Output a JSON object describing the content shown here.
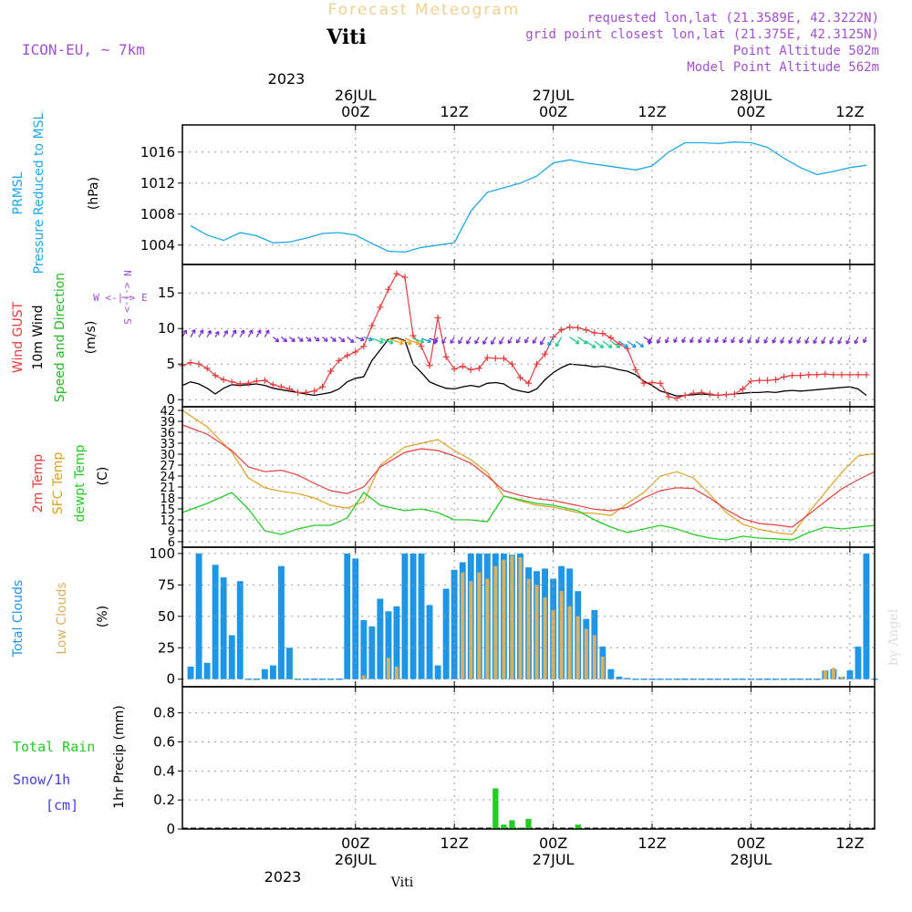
{
  "header": {
    "title": "Forecast Meteogram",
    "location": "Viti",
    "model": "ICON-EU, ~ 7km",
    "requested": "requested lon,lat (21.3589E, 42.3222N)",
    "gridpoint": "grid point closest lon,lat (21.375E, 42.3125N)",
    "point_altitude": "Point Altitude 502m",
    "model_altitude": "Model Point Altitude 562m",
    "footer_location": "Viti",
    "watermark": "by Angel"
  },
  "time_axis": {
    "hours_start": -21,
    "hours_end": 63,
    "top_year": "2023",
    "bottom_year": "2023",
    "ticks": [
      {
        "hour": 0,
        "label": "00Z",
        "date": "26JUL"
      },
      {
        "hour": 12,
        "label": "12Z",
        "date": ""
      },
      {
        "hour": 24,
        "label": "00Z",
        "date": "27JUL"
      },
      {
        "hour": 36,
        "label": "12Z",
        "date": ""
      },
      {
        "hour": 48,
        "label": "00Z",
        "date": "28JUL"
      },
      {
        "hour": 60,
        "label": "12Z",
        "date": ""
      }
    ]
  },
  "colors": {
    "pressure": "#1ea8e8",
    "gust": "#e83c3c",
    "wind": "#000000",
    "direction": "#22bb22",
    "t2m": "#e83c3c",
    "sfc": "#e0a020",
    "dewpt": "#22cc22",
    "total_clouds": "#1e96e8",
    "low_clouds": "#d8b060",
    "rain": "#22cc22",
    "snow": "#4040e0",
    "purple": "#a050d0"
  },
  "panels": {
    "pressure": {
      "label1": "PRMSL",
      "label2": "Pressure Reduced to MSL",
      "unit": "(hPa)",
      "ticks": [
        1004,
        1008,
        1012,
        1016
      ],
      "ylim": [
        1001.5,
        1019.5
      ]
    },
    "wind": {
      "label_gust": "Wind GUST",
      "label_wind": "10m Wind",
      "label_dir": "Speed and Direction",
      "unit": "(m/s)",
      "ticks": [
        0,
        5,
        10,
        15
      ],
      "ylim": [
        -1,
        19
      ],
      "compass_we": "W <-|-> E",
      "compass_ns": "N <-|-> S"
    },
    "temperature": {
      "label_t2m": "2m Temp",
      "label_sfc": "SFC Temp",
      "label_dew": "dewpt Temp",
      "unit": "(C)",
      "ticks": [
        6,
        9,
        12,
        15,
        18,
        21,
        24,
        27,
        30,
        33,
        36,
        39,
        42
      ],
      "ylim": [
        4.5,
        43
      ]
    },
    "clouds": {
      "label_total": "Total Clouds",
      "label_low": "Low Clouds",
      "unit": "(%)",
      "ticks": [
        0,
        25,
        50,
        75,
        100
      ],
      "ylim": [
        -6,
        105
      ]
    },
    "precip": {
      "label_rain": "Total Rain",
      "label_snow": "Snow/1h",
      "label_snow_unit": "[cm]",
      "unit": "1hr Precip (mm)",
      "ticks": [
        0,
        0.2,
        0.4,
        0.6,
        0.8
      ],
      "tick_labels": [
        "0",
        "0.2",
        "0.4",
        "0.6",
        "0.8"
      ],
      "ylim": [
        0,
        0.98
      ]
    }
  },
  "chart_data": [
    {
      "type": "line",
      "title": "PRMSL",
      "ylabel": "hPa",
      "series": [
        {
          "name": "PRMSL",
          "x": [
            -20,
            -18,
            -16,
            -14,
            -12,
            -10,
            -8,
            -6,
            -4,
            -2,
            0,
            2,
            4,
            6,
            8,
            10,
            12,
            14,
            16,
            18,
            20,
            22,
            24,
            26,
            28,
            30,
            32,
            34,
            36,
            38,
            40,
            42,
            44,
            46,
            48,
            50,
            52,
            54,
            56,
            58,
            60,
            62
          ],
          "y": [
            1006.5,
            1005.3,
            1004.6,
            1005.6,
            1005.2,
            1004.3,
            1004.4,
            1004.9,
            1005.5,
            1005.6,
            1005.3,
            1004.2,
            1003.2,
            1003.1,
            1003.7,
            1004.0,
            1004.3,
            1008.4,
            1010.8,
            1011.4,
            1012.0,
            1012.9,
            1014.6,
            1015.0,
            1014.6,
            1014.3,
            1014.0,
            1013.7,
            1014.2,
            1016.0,
            1017.2,
            1017.2,
            1017.1,
            1017.3,
            1017.2,
            1016.6,
            1015.2,
            1014.0,
            1013.1,
            1013.5,
            1014.0,
            1014.3
          ]
        }
      ]
    },
    {
      "type": "line",
      "title": "Wind",
      "ylabel": "m/s",
      "series": [
        {
          "name": "Wind GUST",
          "x": [
            -21,
            -20,
            -19,
            -18,
            -17,
            -16,
            -15,
            -14,
            -13,
            -12,
            -11,
            -10,
            -9,
            -8,
            -7,
            -6,
            -5,
            -4,
            -3,
            -2,
            -1,
            0,
            1,
            2,
            3,
            4,
            5,
            6,
            7,
            8,
            9,
            10,
            11,
            12,
            13,
            14,
            15,
            16,
            17,
            18,
            19,
            20,
            21,
            22,
            23,
            24,
            25,
            26,
            27,
            28,
            29,
            30,
            31,
            32,
            33,
            34,
            35,
            36,
            37,
            38,
            39,
            40,
            41,
            42,
            43,
            44,
            45,
            46,
            47,
            48,
            49,
            50,
            51,
            52,
            53,
            54,
            55,
            56,
            57,
            58,
            59,
            60,
            61,
            62
          ],
          "y": [
            4.8,
            5.2,
            5.0,
            4.4,
            3.4,
            2.8,
            2.5,
            2.2,
            2.3,
            2.6,
            2.7,
            2.1,
            1.8,
            1.5,
            1.0,
            1.0,
            1.2,
            1.8,
            4.0,
            5.5,
            6.2,
            6.7,
            7.5,
            10.4,
            13.0,
            15.5,
            17.7,
            17.2,
            9.0,
            7.5,
            4.8,
            11.5,
            6.0,
            4.3,
            4.7,
            4.2,
            4.4,
            5.9,
            5.8,
            5.8,
            5.0,
            3.1,
            2.3,
            5.0,
            6.4,
            8.8,
            9.8,
            10.2,
            10.1,
            9.8,
            9.4,
            9.3,
            8.7,
            7.8,
            7.2,
            4.2,
            2.3,
            2.4,
            2.3,
            0.4,
            0.2,
            0.6,
            0.9,
            1.0,
            0.8,
            0.6,
            0.7,
            0.8,
            1.5,
            2.6,
            2.7,
            2.7,
            2.8,
            3.2,
            3.4,
            3.4,
            3.5,
            3.5,
            3.6,
            3.5,
            3.5,
            3.5,
            3.5,
            3.5
          ]
        },
        {
          "name": "10m Wind",
          "x": [
            -21,
            -20,
            -19,
            -18,
            -17,
            -16,
            -15,
            -14,
            -13,
            -12,
            -11,
            -10,
            -9,
            -8,
            -7,
            -6,
            -5,
            -4,
            -3,
            -2,
            -1,
            0,
            1,
            2,
            3,
            4,
            5,
            6,
            7,
            8,
            9,
            10,
            11,
            12,
            13,
            14,
            15,
            16,
            17,
            18,
            19,
            20,
            21,
            22,
            23,
            24,
            25,
            26,
            27,
            28,
            29,
            30,
            31,
            32,
            33,
            34,
            35,
            36,
            37,
            38,
            39,
            40,
            41,
            42,
            43,
            44,
            45,
            46,
            47,
            48,
            49,
            50,
            51,
            52,
            53,
            54,
            55,
            56,
            57,
            58,
            59,
            60,
            61,
            62
          ],
          "y": [
            2.0,
            2.5,
            2.2,
            1.6,
            0.8,
            1.6,
            2.1,
            2.0,
            2.1,
            2.2,
            2.0,
            1.6,
            1.4,
            1.2,
            1.0,
            0.8,
            0.6,
            0.8,
            1.0,
            1.5,
            2.5,
            3.0,
            3.2,
            5.5,
            7.0,
            8.5,
            8.7,
            8.3,
            5.0,
            3.8,
            2.5,
            2.0,
            1.6,
            1.5,
            1.8,
            2.0,
            1.8,
            2.3,
            2.4,
            2.2,
            1.5,
            1.2,
            1.0,
            1.5,
            2.8,
            3.8,
            4.5,
            5.0,
            4.9,
            4.8,
            4.6,
            4.7,
            4.5,
            4.2,
            4.0,
            3.5,
            2.6,
            2.0,
            1.2,
            0.9,
            0.5,
            0.6,
            0.7,
            0.8,
            0.7,
            0.6,
            0.7,
            0.8,
            0.9,
            1.0,
            1.0,
            1.1,
            1.0,
            1.2,
            1.3,
            1.2,
            1.3,
            1.4,
            1.5,
            1.6,
            1.7,
            1.8,
            1.5,
            0.6
          ]
        }
      ]
    },
    {
      "type": "line",
      "title": "Temperature",
      "ylabel": "C",
      "series": [
        {
          "name": "2m Temp",
          "x": [
            -21,
            -18,
            -15,
            -13,
            -11,
            -9,
            -7,
            -5,
            -3,
            -1,
            1,
            3,
            6,
            8,
            10,
            12,
            14,
            16,
            18,
            20,
            22,
            24,
            27,
            29,
            31,
            33,
            35,
            37,
            39,
            41,
            43,
            45,
            47,
            49,
            51,
            53,
            55,
            57,
            59,
            61,
            63
          ],
          "y": [
            38.0,
            35.5,
            31.0,
            26.5,
            25.2,
            25.6,
            24.3,
            22.0,
            20.0,
            19.2,
            21.0,
            26.5,
            30.5,
            31.5,
            31.0,
            29.5,
            27.5,
            24.0,
            20.0,
            18.7,
            17.8,
            17.3,
            15.9,
            14.9,
            14.5,
            15.4,
            18.0,
            20.0,
            20.8,
            20.6,
            18.0,
            14.8,
            12.3,
            11.0,
            10.6,
            10.0,
            13.5,
            17.0,
            20.5,
            23.0,
            25.2
          ]
        },
        {
          "name": "SFC Temp",
          "x": [
            -21,
            -18,
            -15,
            -13,
            -11,
            -9,
            -7,
            -5,
            -3,
            -1,
            1,
            3,
            6,
            8,
            10,
            12,
            14,
            16,
            18,
            20,
            22,
            24,
            27,
            29,
            31,
            33,
            35,
            37,
            39,
            41,
            43,
            45,
            47,
            49,
            51,
            53,
            55,
            57,
            59,
            61,
            63
          ],
          "y": [
            42.0,
            37.5,
            30.5,
            23.5,
            20.8,
            19.8,
            19.2,
            18.0,
            16.0,
            15.2,
            17.0,
            27.0,
            32.0,
            33.0,
            34.0,
            31.0,
            28.5,
            25.0,
            18.5,
            17.2,
            16.0,
            15.5,
            14.0,
            13.8,
            13.2,
            16.5,
            19.5,
            24.0,
            25.2,
            23.5,
            19.0,
            14.0,
            10.8,
            9.4,
            8.5,
            8.0,
            14.0,
            19.5,
            25.0,
            29.5,
            30.2
          ]
        },
        {
          "name": "dewpt Temp",
          "x": [
            -21,
            -18,
            -15,
            -13,
            -11,
            -9,
            -7,
            -5,
            -3,
            -1,
            1,
            3,
            6,
            8,
            10,
            12,
            14,
            16,
            18,
            20,
            22,
            24,
            27,
            29,
            31,
            33,
            35,
            37,
            39,
            41,
            43,
            45,
            47,
            49,
            51,
            53,
            55,
            57,
            59,
            61,
            63
          ],
          "y": [
            14.0,
            16.5,
            19.5,
            15.0,
            9.0,
            8.0,
            9.5,
            10.5,
            10.5,
            12.5,
            19.5,
            16.0,
            14.5,
            15.0,
            14.0,
            12.0,
            12.0,
            11.5,
            18.5,
            17.5,
            16.5,
            16.0,
            14.5,
            12.0,
            10.0,
            8.5,
            9.5,
            10.5,
            9.5,
            8.0,
            7.0,
            6.5,
            7.5,
            7.0,
            6.8,
            6.5,
            8.5,
            10.0,
            9.5,
            10.0,
            10.5
          ]
        }
      ]
    },
    {
      "type": "bar",
      "title": "Clouds",
      "ylabel": "%",
      "x": [
        -20,
        -19,
        -18,
        -17,
        -16,
        -15,
        -14,
        -13,
        -12,
        -11,
        -10,
        -9,
        -8,
        -7,
        -6,
        -5,
        -4,
        -3,
        -2,
        -1,
        0,
        1,
        2,
        3,
        4,
        5,
        6,
        7,
        8,
        9,
        10,
        11,
        12,
        13,
        14,
        15,
        16,
        17,
        18,
        19,
        20,
        21,
        22,
        23,
        24,
        25,
        26,
        27,
        28,
        29,
        30,
        31,
        32,
        33,
        34,
        35,
        36,
        37,
        38,
        39,
        40,
        41,
        42,
        43,
        44,
        45,
        46,
        47,
        48,
        49,
        50,
        51,
        52,
        53,
        54,
        55,
        56,
        57,
        58,
        59,
        60,
        61,
        62,
        63
      ],
      "series": [
        {
          "name": "Total Clouds",
          "values": [
            10,
            100,
            13,
            91,
            81,
            35,
            78,
            0,
            0,
            8,
            11,
            90,
            25,
            0,
            0,
            0,
            0,
            0,
            0,
            100,
            96,
            47,
            42,
            64,
            54,
            58,
            100,
            100,
            100,
            59,
            11,
            72,
            87,
            93,
            100,
            100,
            100,
            100,
            100,
            99,
            100,
            89,
            86,
            88,
            80,
            90,
            88,
            70,
            48,
            55,
            26,
            8,
            2,
            1,
            0,
            0,
            0,
            0,
            0,
            0,
            0,
            0,
            0,
            0,
            0,
            0,
            0,
            0,
            0,
            0,
            0,
            0,
            0,
            0,
            0,
            0,
            0,
            7,
            8,
            2,
            7,
            26,
            100,
            0
          ]
        },
        {
          "name": "Low Clouds",
          "values": [
            0,
            0,
            0,
            0,
            0,
            0,
            0,
            0,
            0,
            0,
            0,
            0,
            0,
            0,
            0,
            0,
            0,
            0,
            0,
            0,
            0,
            3,
            0,
            0,
            17,
            10,
            0,
            0,
            0,
            0,
            0,
            0,
            0,
            85,
            78,
            85,
            80,
            90,
            95,
            98,
            97,
            80,
            75,
            65,
            55,
            70,
            58,
            50,
            40,
            35,
            18,
            0,
            0,
            0,
            0,
            0,
            0,
            0,
            0,
            0,
            0,
            0,
            0,
            0,
            0,
            0,
            0,
            0,
            0,
            0,
            0,
            0,
            0,
            0,
            0,
            0,
            0,
            7,
            9,
            2,
            0,
            0,
            0,
            0
          ]
        }
      ]
    },
    {
      "type": "bar",
      "title": "1hr Precip",
      "ylabel": "mm",
      "x": [
        17,
        18,
        19,
        20,
        21,
        23,
        27
      ],
      "series": [
        {
          "name": "Total Rain",
          "values": [
            0.28,
            0.03,
            0.06,
            0.01,
            0.07,
            0.0,
            0.03
          ]
        }
      ]
    }
  ]
}
